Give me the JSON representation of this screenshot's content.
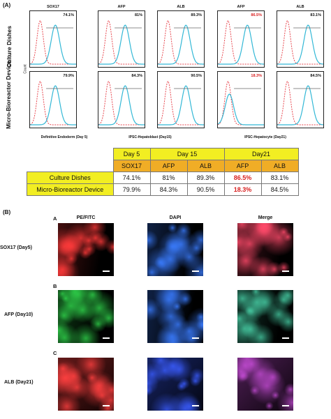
{
  "panel_a": "(A)",
  "panel_b": "(B)",
  "row_labels": [
    "Culture Dishes",
    "Micro-Bioreactor Device"
  ],
  "count_label": "Count",
  "stage_captions": [
    "Definitive Endoderm (Day 5)",
    "IPSC-Hepatoblast (Day15)",
    "IPSC-Hepatocyte (Day21)"
  ],
  "histograms": [
    {
      "marker": "SOX17",
      "culture": "74.1%",
      "device": "79.9%"
    },
    {
      "marker": "AFP",
      "culture": "81%",
      "device": "84.3%"
    },
    {
      "marker": "ALB",
      "culture": "89.3%",
      "device": "90.5%"
    },
    {
      "marker": "AFP",
      "culture": "86.5%",
      "device": "18.3%"
    },
    {
      "marker": "ALB",
      "culture": "83.1%",
      "device": "84.5%"
    }
  ],
  "colors": {
    "isotype": "#e8474f",
    "stain": "#33b8d6",
    "header_yellow": "#f2ee22",
    "header_orange": "#f0ad26",
    "highlight": "#d82020"
  },
  "table": {
    "days": [
      "Day 5",
      "Day 15",
      "Day21"
    ],
    "markers": [
      "SOX17",
      "AFP",
      "ALB",
      "AFP",
      "ALB"
    ],
    "rows": [
      {
        "label": "Culture Dishes",
        "values": [
          "74.1%",
          "81%",
          "89.3%",
          "86.5%",
          "83.1%"
        ]
      },
      {
        "label": "Micro-Bioreactor Device",
        "values": [
          "79.9%",
          "84.3%",
          "90.5%",
          "18.3%",
          "84.5%"
        ]
      }
    ]
  },
  "chart_data": {
    "type": "table",
    "categories": [
      "SOX17 (Day 5)",
      "AFP (Day 15)",
      "ALB (Day 15)",
      "AFP (Day21)",
      "ALB (Day21)"
    ],
    "series": [
      {
        "name": "Culture Dishes",
        "values": [
          74.1,
          81,
          89.3,
          86.5,
          83.1
        ]
      },
      {
        "name": "Micro-Bioreactor Device",
        "values": [
          79.9,
          84.3,
          90.5,
          18.3,
          84.5
        ]
      }
    ]
  },
  "fluorescence": {
    "columns": [
      "PE/FITC",
      "DAPI",
      "Merge"
    ],
    "rows": [
      {
        "letter": "A",
        "label": "SOX17 (Day5)"
      },
      {
        "letter": "B",
        "label": "AFP (Day10)"
      },
      {
        "letter": "C",
        "label": "ALB (Day21)"
      }
    ]
  }
}
